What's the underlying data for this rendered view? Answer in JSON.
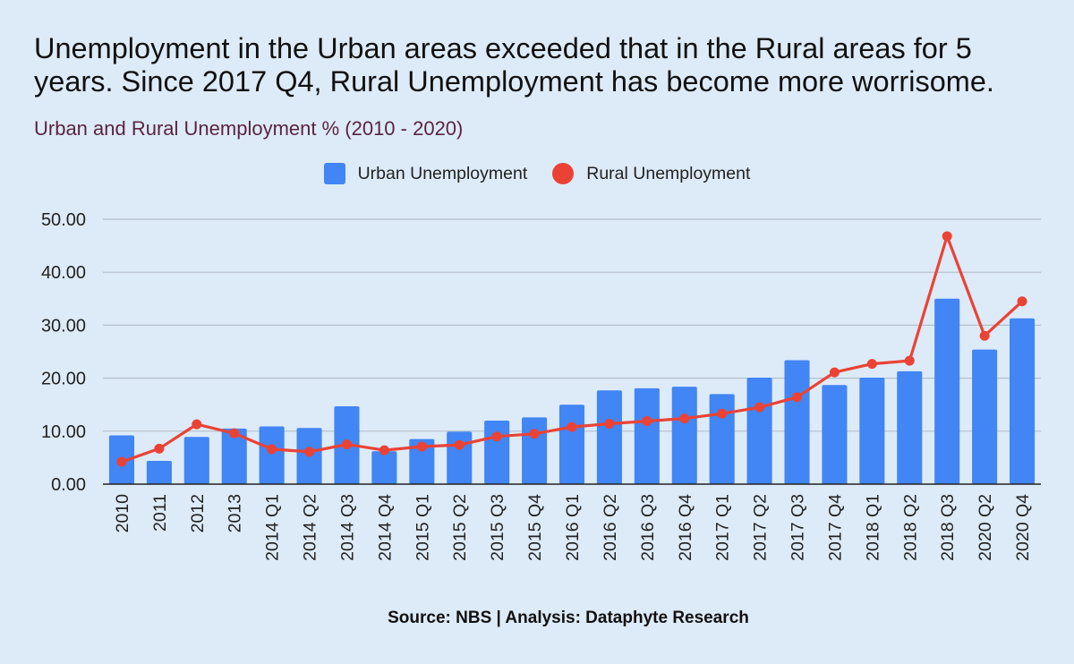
{
  "header": {
    "title": "Unemployment in the Urban areas exceeded that in the Rural areas for 5 years. Since 2017 Q4, Rural Unemployment has become more worrisome.",
    "subtitle": "Urban and Rural Unemployment % (2010 - 2020)"
  },
  "footer": {
    "source": "Source: NBS | Analysis: Dataphyte Research"
  },
  "colors": {
    "background": "#ddebf8",
    "urban": "#4285f4",
    "rural": "#ea4335",
    "grid": "#b4bec8",
    "axis": "#222222"
  },
  "chart_data": {
    "type": "bar",
    "categories": [
      "2010",
      "2011",
      "2012",
      "2013",
      "2014 Q1",
      "2014 Q2",
      "2014 Q3",
      "2014 Q4",
      "2015 Q1",
      "2015 Q2",
      "2015 Q3",
      "2015 Q4",
      "2016 Q1",
      "2016 Q2",
      "2016 Q3",
      "2016 Q4",
      "2017 Q1",
      "2017 Q2",
      "2017 Q3",
      "2017 Q4",
      "2018 Q1",
      "2018 Q2",
      "2018 Q3",
      "2020 Q2",
      "2020 Q4"
    ],
    "series": [
      {
        "name": "Urban Unemployment",
        "type": "bar",
        "values": [
          9.2,
          4.4,
          8.9,
          10.5,
          10.9,
          10.6,
          14.7,
          6.2,
          8.5,
          9.9,
          12.0,
          12.6,
          15.0,
          17.7,
          18.1,
          18.4,
          17.0,
          20.1,
          23.4,
          18.7,
          20.1,
          21.3,
          35.0,
          25.4,
          31.3
        ]
      },
      {
        "name": "Rural Unemployment",
        "type": "line",
        "values": [
          4.2,
          6.7,
          11.3,
          9.6,
          6.6,
          6.1,
          7.5,
          6.4,
          7.1,
          7.4,
          9.0,
          9.5,
          10.8,
          11.4,
          11.9,
          12.4,
          13.3,
          14.5,
          16.4,
          21.1,
          22.7,
          23.3,
          46.8,
          28.0,
          34.5
        ]
      }
    ],
    "yticks": [
      "0.00",
      "10.00",
      "20.00",
      "30.00",
      "40.00",
      "50.00"
    ],
    "ylim": [
      0,
      50
    ],
    "grid": true,
    "legend_position": "top-center",
    "xlabel": "",
    "ylabel": ""
  }
}
